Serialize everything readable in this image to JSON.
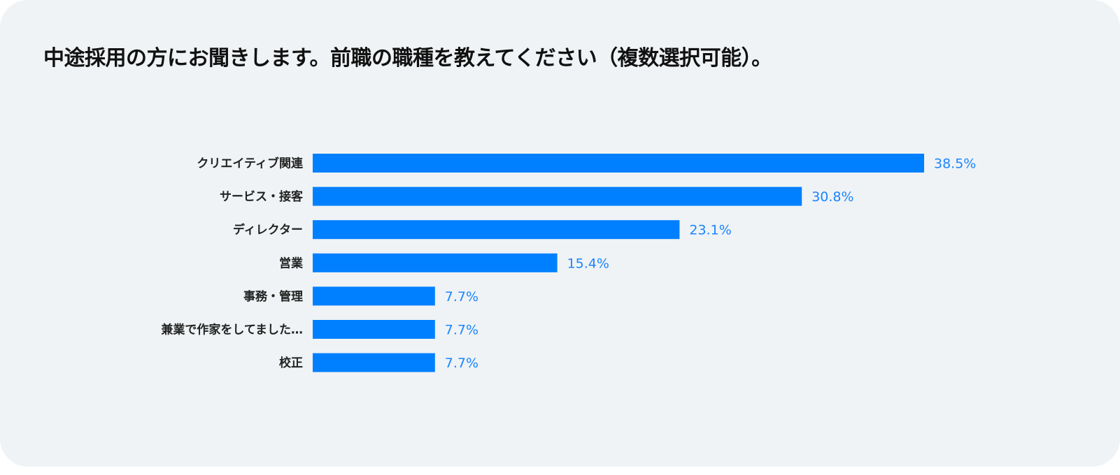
{
  "chart_data": {
    "type": "bar",
    "orientation": "horizontal",
    "title": "中途採用の方にお聞きします。前職の職種を教えてください（複数選択可能）。",
    "categories": [
      "クリエイティブ関連",
      "サービス・接客",
      "ディレクター",
      "営業",
      "事務・管理",
      "兼業で作家をしてました…",
      "校正"
    ],
    "values": [
      38.5,
      30.8,
      23.1,
      15.4,
      7.7,
      7.7,
      7.7
    ],
    "value_labels": [
      "38.5%",
      "30.8%",
      "23.1%",
      "15.4%",
      "7.7%",
      "7.7%",
      "7.7%"
    ],
    "unit": "%",
    "xlim": [
      0,
      38.5
    ],
    "grid": false,
    "bar_color": "#0080ff",
    "label_color": "#1a85ff"
  }
}
